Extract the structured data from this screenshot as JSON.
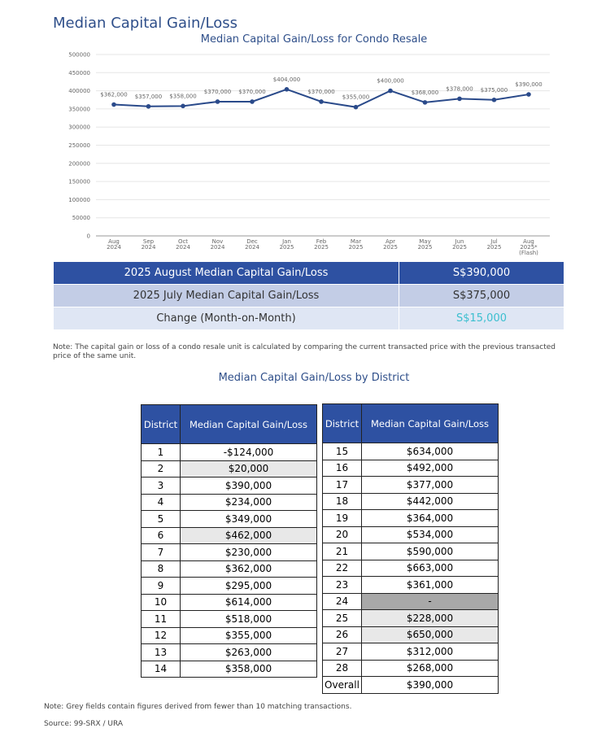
{
  "title": "Median Capital Gain/Loss",
  "chart_data": {
    "type": "line",
    "title": "Median Capital Gain/Loss for Condo Resale",
    "categories": [
      "Aug 2024",
      "Sep 2024",
      "Oct 2024",
      "Nov 2024",
      "Dec 2024",
      "Jan 2025",
      "Feb 2025",
      "Mar 2025",
      "Apr 2025",
      "May 2025",
      "Jun 2025",
      "Jul 2025",
      "Aug 2025* (Flash)"
    ],
    "series": [
      {
        "name": "Median Capital Gain/Loss",
        "color": "#2a4a8a",
        "values": [
          362000,
          357000,
          358000,
          370000,
          370000,
          404000,
          370000,
          355000,
          400000,
          368000,
          378000,
          375000,
          390000
        ],
        "value_labels": [
          "$362,000",
          "$357,000",
          "$358,000",
          "$370,000",
          "$370,000",
          "$404,000",
          "$370,000",
          "$355,000",
          "$400,000",
          "$368,000",
          "$378,000",
          "$375,000",
          "$390,000"
        ]
      }
    ],
    "ylim": [
      0,
      500000
    ],
    "yticks": [
      0,
      50000,
      100000,
      150000,
      200000,
      250000,
      300000,
      350000,
      400000,
      450000,
      500000
    ],
    "grid": true
  },
  "summary": {
    "rows": [
      [
        "2025 August Median Capital Gain/Loss",
        "S$390,000"
      ],
      [
        "2025 July Median Capital Gain/Loss",
        "S$375,000"
      ],
      [
        "Change (Month-on-Month)",
        "S$15,000"
      ]
    ]
  },
  "note": "Note: The capital gain or loss of a condo resale unit is calculated by comparing the current transacted price with the previous transacted price of the same unit.",
  "district_title": "Median Capital Gain/Loss by District",
  "district_tables": [
    {
      "header": [
        "District",
        "Median Capital Gain/Loss"
      ],
      "rows": [
        [
          "1",
          "-$124,000"
        ],
        [
          "2",
          "$20,000"
        ],
        [
          "3",
          "$390,000"
        ],
        [
          "4",
          "$234,000"
        ],
        [
          "5",
          "$349,000"
        ],
        [
          "6",
          "$462,000"
        ],
        [
          "7",
          "$230,000"
        ],
        [
          "8",
          "$362,000"
        ],
        [
          "9",
          "$295,000"
        ],
        [
          "10",
          "$614,000"
        ],
        [
          "11",
          "$518,000"
        ],
        [
          "12",
          "$355,000"
        ],
        [
          "13",
          "$263,000"
        ],
        [
          "14",
          "$358,000"
        ]
      ],
      "shaded": [
        1,
        5
      ],
      "dark_shaded": []
    },
    {
      "header": [
        "District",
        "Median Capital Gain/Loss"
      ],
      "rows": [
        [
          "15",
          "$634,000"
        ],
        [
          "16",
          "$492,000"
        ],
        [
          "17",
          "$377,000"
        ],
        [
          "18",
          "$442,000"
        ],
        [
          "19",
          "$364,000"
        ],
        [
          "20",
          "$534,000"
        ],
        [
          "21",
          "$590,000"
        ],
        [
          "22",
          "$663,000"
        ],
        [
          "23",
          "$361,000"
        ],
        [
          "24",
          "-"
        ],
        [
          "25",
          "$228,000"
        ],
        [
          "26",
          "$650,000"
        ],
        [
          "27",
          "$312,000"
        ],
        [
          "28",
          "$268,000"
        ],
        [
          "Overall",
          "$390,000"
        ]
      ],
      "shaded": [
        10,
        11
      ],
      "dark_shaded": [
        9
      ]
    }
  ],
  "footnote": "Note: Grey fields contain figures derived from fewer than 10 matching transactions.",
  "source": "Source: 99-SRX / URA"
}
